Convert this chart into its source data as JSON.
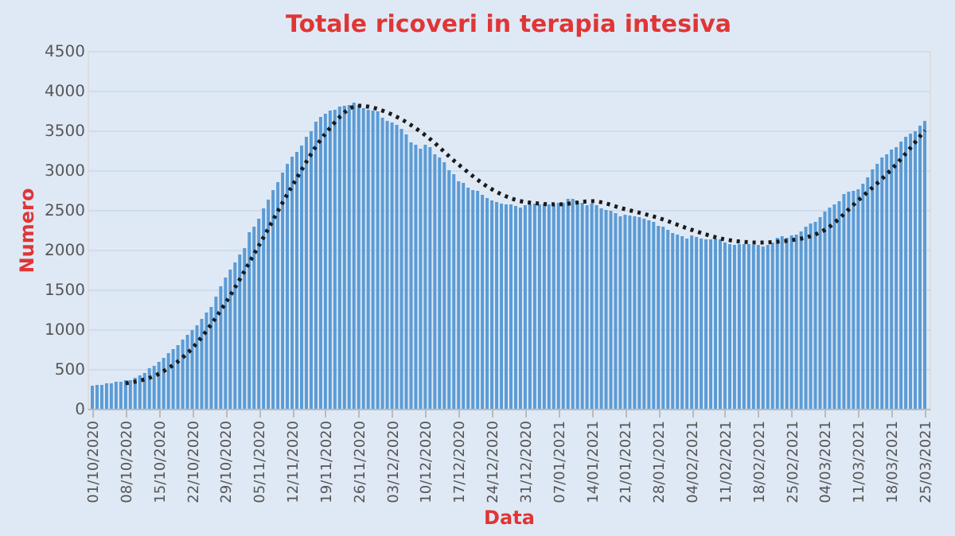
{
  "chart_data": {
    "type": "bar",
    "title": "Totale ricoveri in terapia intesiva",
    "xlabel": "Data",
    "ylabel": "Numero",
    "x": [
      "2020-10-01",
      "2020-10-02",
      "2020-10-03",
      "2020-10-04",
      "2020-10-05",
      "2020-10-06",
      "2020-10-07",
      "2020-10-08",
      "2020-10-09",
      "2020-10-10",
      "2020-10-11",
      "2020-10-12",
      "2020-10-13",
      "2020-10-14",
      "2020-10-15",
      "2020-10-16",
      "2020-10-17",
      "2020-10-18",
      "2020-10-19",
      "2020-10-20",
      "2020-10-21",
      "2020-10-22",
      "2020-10-23",
      "2020-10-24",
      "2020-10-25",
      "2020-10-26",
      "2020-10-27",
      "2020-10-28",
      "2020-10-29",
      "2020-10-30",
      "2020-10-31",
      "2020-11-01",
      "2020-11-02",
      "2020-11-03",
      "2020-11-04",
      "2020-11-05",
      "2020-11-06",
      "2020-11-07",
      "2020-11-08",
      "2020-11-09",
      "2020-11-10",
      "2020-11-11",
      "2020-11-12",
      "2020-11-13",
      "2020-11-14",
      "2020-11-15",
      "2020-11-16",
      "2020-11-17",
      "2020-11-18",
      "2020-11-19",
      "2020-11-20",
      "2020-11-21",
      "2020-11-22",
      "2020-11-23",
      "2020-11-24",
      "2020-11-25",
      "2020-11-26",
      "2020-11-27",
      "2020-11-28",
      "2020-11-29",
      "2020-11-30",
      "2020-12-01",
      "2020-12-02",
      "2020-12-03",
      "2020-12-04",
      "2020-12-05",
      "2020-12-06",
      "2020-12-07",
      "2020-12-08",
      "2020-12-09",
      "2020-12-10",
      "2020-12-11",
      "2020-12-12",
      "2020-12-13",
      "2020-12-14",
      "2020-12-15",
      "2020-12-16",
      "2020-12-17",
      "2020-12-18",
      "2020-12-19",
      "2020-12-20",
      "2020-12-21",
      "2020-12-22",
      "2020-12-23",
      "2020-12-24",
      "2020-12-25",
      "2020-12-26",
      "2020-12-27",
      "2020-12-28",
      "2020-12-29",
      "2020-12-30",
      "2020-12-31",
      "2021-01-01",
      "2021-01-02",
      "2021-01-03",
      "2021-01-04",
      "2021-01-05",
      "2021-01-06",
      "2021-01-07",
      "2021-01-08",
      "2021-01-09",
      "2021-01-10",
      "2021-01-11",
      "2021-01-12",
      "2021-01-13",
      "2021-01-14",
      "2021-01-15",
      "2021-01-16",
      "2021-01-17",
      "2021-01-18",
      "2021-01-19",
      "2021-01-20",
      "2021-01-21",
      "2021-01-22",
      "2021-01-23",
      "2021-01-24",
      "2021-01-25",
      "2021-01-26",
      "2021-01-27",
      "2021-01-28",
      "2021-01-29",
      "2021-01-30",
      "2021-01-31",
      "2021-02-01",
      "2021-02-02",
      "2021-02-03",
      "2021-02-04",
      "2021-02-05",
      "2021-02-06",
      "2021-02-07",
      "2021-02-08",
      "2021-02-09",
      "2021-02-10",
      "2021-02-11",
      "2021-02-12",
      "2021-02-13",
      "2021-02-14",
      "2021-02-15",
      "2021-02-16",
      "2021-02-17",
      "2021-02-18",
      "2021-02-19",
      "2021-02-20",
      "2021-02-21",
      "2021-02-22",
      "2021-02-23",
      "2021-02-24",
      "2021-02-25",
      "2021-02-26",
      "2021-02-27",
      "2021-02-28",
      "2021-03-01",
      "2021-03-02",
      "2021-03-03",
      "2021-03-04",
      "2021-03-05",
      "2021-03-06",
      "2021-03-07",
      "2021-03-08",
      "2021-03-09",
      "2021-03-10",
      "2021-03-11",
      "2021-03-12",
      "2021-03-13",
      "2021-03-14",
      "2021-03-15",
      "2021-03-16",
      "2021-03-17",
      "2021-03-18",
      "2021-03-19",
      "2021-03-20",
      "2021-03-21",
      "2021-03-22",
      "2021-03-23",
      "2021-03-24",
      "2021-03-25"
    ],
    "series": [
      {
        "color": "#5b9bd5",
        "values": [
          290,
          300,
          300,
          320,
          320,
          340,
          340,
          360,
          360,
          390,
          420,
          450,
          510,
          540,
          590,
          640,
          700,
          750,
          800,
          870,
          930,
          990,
          1050,
          1130,
          1210,
          1280,
          1410,
          1540,
          1650,
          1750,
          1840,
          1940,
          2020,
          2220,
          2290,
          2390,
          2520,
          2630,
          2750,
          2850,
          2970,
          3080,
          3170,
          3230,
          3310,
          3420,
          3490,
          3610,
          3670,
          3710,
          3750,
          3760,
          3800,
          3810,
          3820,
          3850,
          3820,
          3780,
          3760,
          3750,
          3740,
          3660,
          3620,
          3600,
          3570,
          3520,
          3450,
          3350,
          3320,
          3270,
          3320,
          3290,
          3200,
          3160,
          3100,
          3000,
          2950,
          2860,
          2840,
          2780,
          2750,
          2740,
          2690,
          2650,
          2620,
          2600,
          2580,
          2570,
          2570,
          2550,
          2530,
          2560,
          2570,
          2580,
          2570,
          2580,
          2570,
          2570,
          2590,
          2590,
          2640,
          2640,
          2610,
          2590,
          2560,
          2580,
          2560,
          2520,
          2500,
          2490,
          2460,
          2420,
          2440,
          2430,
          2420,
          2410,
          2390,
          2370,
          2350,
          2300,
          2290,
          2250,
          2210,
          2190,
          2170,
          2140,
          2180,
          2160,
          2140,
          2130,
          2130,
          2140,
          2130,
          2090,
          2070,
          2060,
          2070,
          2070,
          2070,
          2060,
          2060,
          2040,
          2060,
          2090,
          2150,
          2170,
          2150,
          2180,
          2190,
          2230,
          2290,
          2330,
          2350,
          2410,
          2480,
          2530,
          2570,
          2610,
          2700,
          2730,
          2740,
          2760,
          2830,
          2910,
          3010,
          3080,
          3160,
          3200,
          3260,
          3290,
          3360,
          3420,
          3460,
          3490,
          3560,
          3620
        ]
      },
      {
        "type": "line",
        "color": "#1a1a1a",
        "line_style": "dotted",
        "x": [
          "2020-10-08",
          "2020-10-15",
          "2020-10-22",
          "2020-10-29",
          "2020-11-05",
          "2020-11-12",
          "2020-11-19",
          "2020-11-26",
          "2020-12-03",
          "2020-12-10",
          "2020-12-17",
          "2020-12-24",
          "2020-12-31",
          "2021-01-07",
          "2021-01-14",
          "2021-01-21",
          "2021-01-28",
          "2021-02-04",
          "2021-02-11",
          "2021-02-18",
          "2021-02-25",
          "2021-03-04",
          "2021-03-11",
          "2021-03-18",
          "2021-03-25"
        ],
        "values": [
          320,
          440,
          760,
          1330,
          2050,
          2800,
          3460,
          3810,
          3700,
          3440,
          3070,
          2760,
          2600,
          2570,
          2610,
          2510,
          2400,
          2250,
          2130,
          2090,
          2120,
          2250,
          2620,
          3010,
          3500
        ]
      }
    ],
    "xlim": [
      "2020-09-30",
      "2021-03-26"
    ],
    "xticks": [
      {
        "value": "2020-10-01",
        "label": "01/10/2020"
      },
      {
        "value": "2020-10-08",
        "label": "08/10/2020"
      },
      {
        "value": "2020-10-15",
        "label": "15/10/2020"
      },
      {
        "value": "2020-10-22",
        "label": "22/10/2020"
      },
      {
        "value": "2020-10-29",
        "label": "29/10/2020"
      },
      {
        "value": "2020-11-05",
        "label": "05/11/2020"
      },
      {
        "value": "2020-11-12",
        "label": "12/11/2020"
      },
      {
        "value": "2020-11-19",
        "label": "19/11/2020"
      },
      {
        "value": "2020-11-26",
        "label": "26/11/2020"
      },
      {
        "value": "2020-12-03",
        "label": "03/12/2020"
      },
      {
        "value": "2020-12-10",
        "label": "10/12/2020"
      },
      {
        "value": "2020-12-17",
        "label": "17/12/2020"
      },
      {
        "value": "2020-12-24",
        "label": "24/12/2020"
      },
      {
        "value": "2020-12-31",
        "label": "31/12/2020"
      },
      {
        "value": "2021-01-07",
        "label": "07/01/2021"
      },
      {
        "value": "2021-01-14",
        "label": "14/01/2021"
      },
      {
        "value": "2021-01-21",
        "label": "21/01/2021"
      },
      {
        "value": "2021-01-28",
        "label": "28/01/2021"
      },
      {
        "value": "2021-02-04",
        "label": "04/02/2021"
      },
      {
        "value": "2021-02-11",
        "label": "11/02/2021"
      },
      {
        "value": "2021-02-18",
        "label": "18/02/2021"
      },
      {
        "value": "2021-02-25",
        "label": "25/02/2021"
      },
      {
        "value": "2021-03-04",
        "label": "04/03/2021"
      },
      {
        "value": "2021-03-11",
        "label": "11/03/2021"
      },
      {
        "value": "2021-03-18",
        "label": "18/03/2021"
      },
      {
        "value": "2021-03-25",
        "label": "25/03/2021"
      }
    ],
    "ylim": [
      0,
      4500
    ],
    "yticks": [
      0,
      500,
      1000,
      1500,
      2000,
      2500,
      3000,
      3500,
      4000,
      4500
    ],
    "grid": "y"
  }
}
